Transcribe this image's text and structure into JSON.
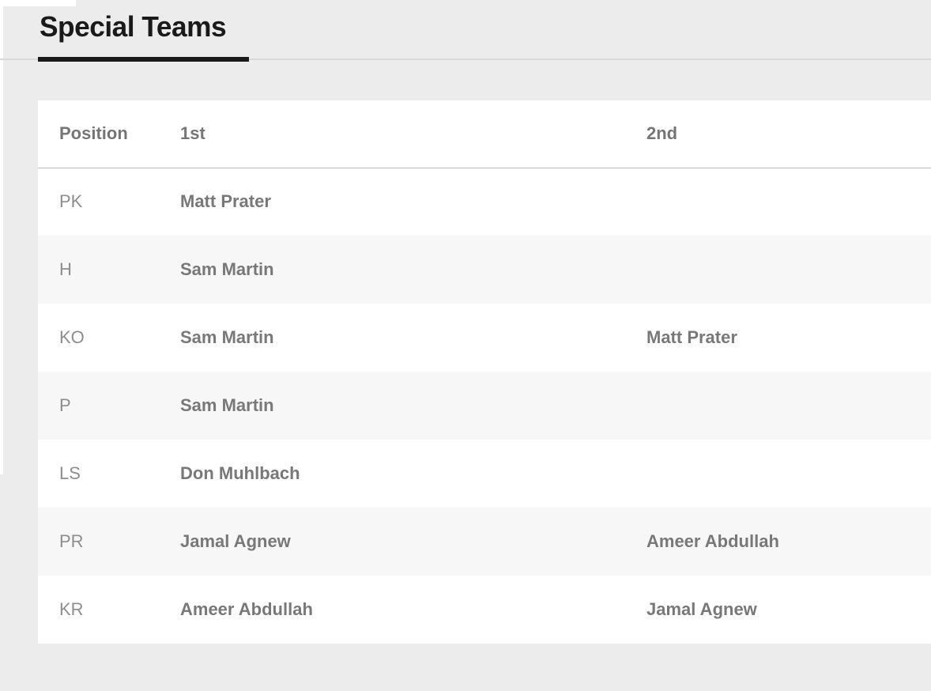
{
  "theme": {
    "page_bg": "#ececec",
    "card_bg": "#ffffff",
    "alt_row_bg": "#f7f7f7",
    "heading_color": "#1a1a1a",
    "accent_underline": "#1a1a1a",
    "header_text": "#757575",
    "position_text": "#8d8d8d",
    "player_text": "#787878"
  },
  "section": {
    "title": "Special Teams"
  },
  "depth_chart": {
    "columns": [
      "Position",
      "1st",
      "2nd"
    ],
    "rows": [
      {
        "position": "PK",
        "first": "Matt Prater",
        "second": ""
      },
      {
        "position": "H",
        "first": "Sam Martin",
        "second": ""
      },
      {
        "position": "KO",
        "first": "Sam Martin",
        "second": "Matt Prater"
      },
      {
        "position": "P",
        "first": "Sam Martin",
        "second": ""
      },
      {
        "position": "LS",
        "first": "Don Muhlbach",
        "second": ""
      },
      {
        "position": "PR",
        "first": "Jamal Agnew",
        "second": "Ameer Abdullah"
      },
      {
        "position": "KR",
        "first": "Ameer Abdullah",
        "second": "Jamal Agnew"
      }
    ]
  }
}
